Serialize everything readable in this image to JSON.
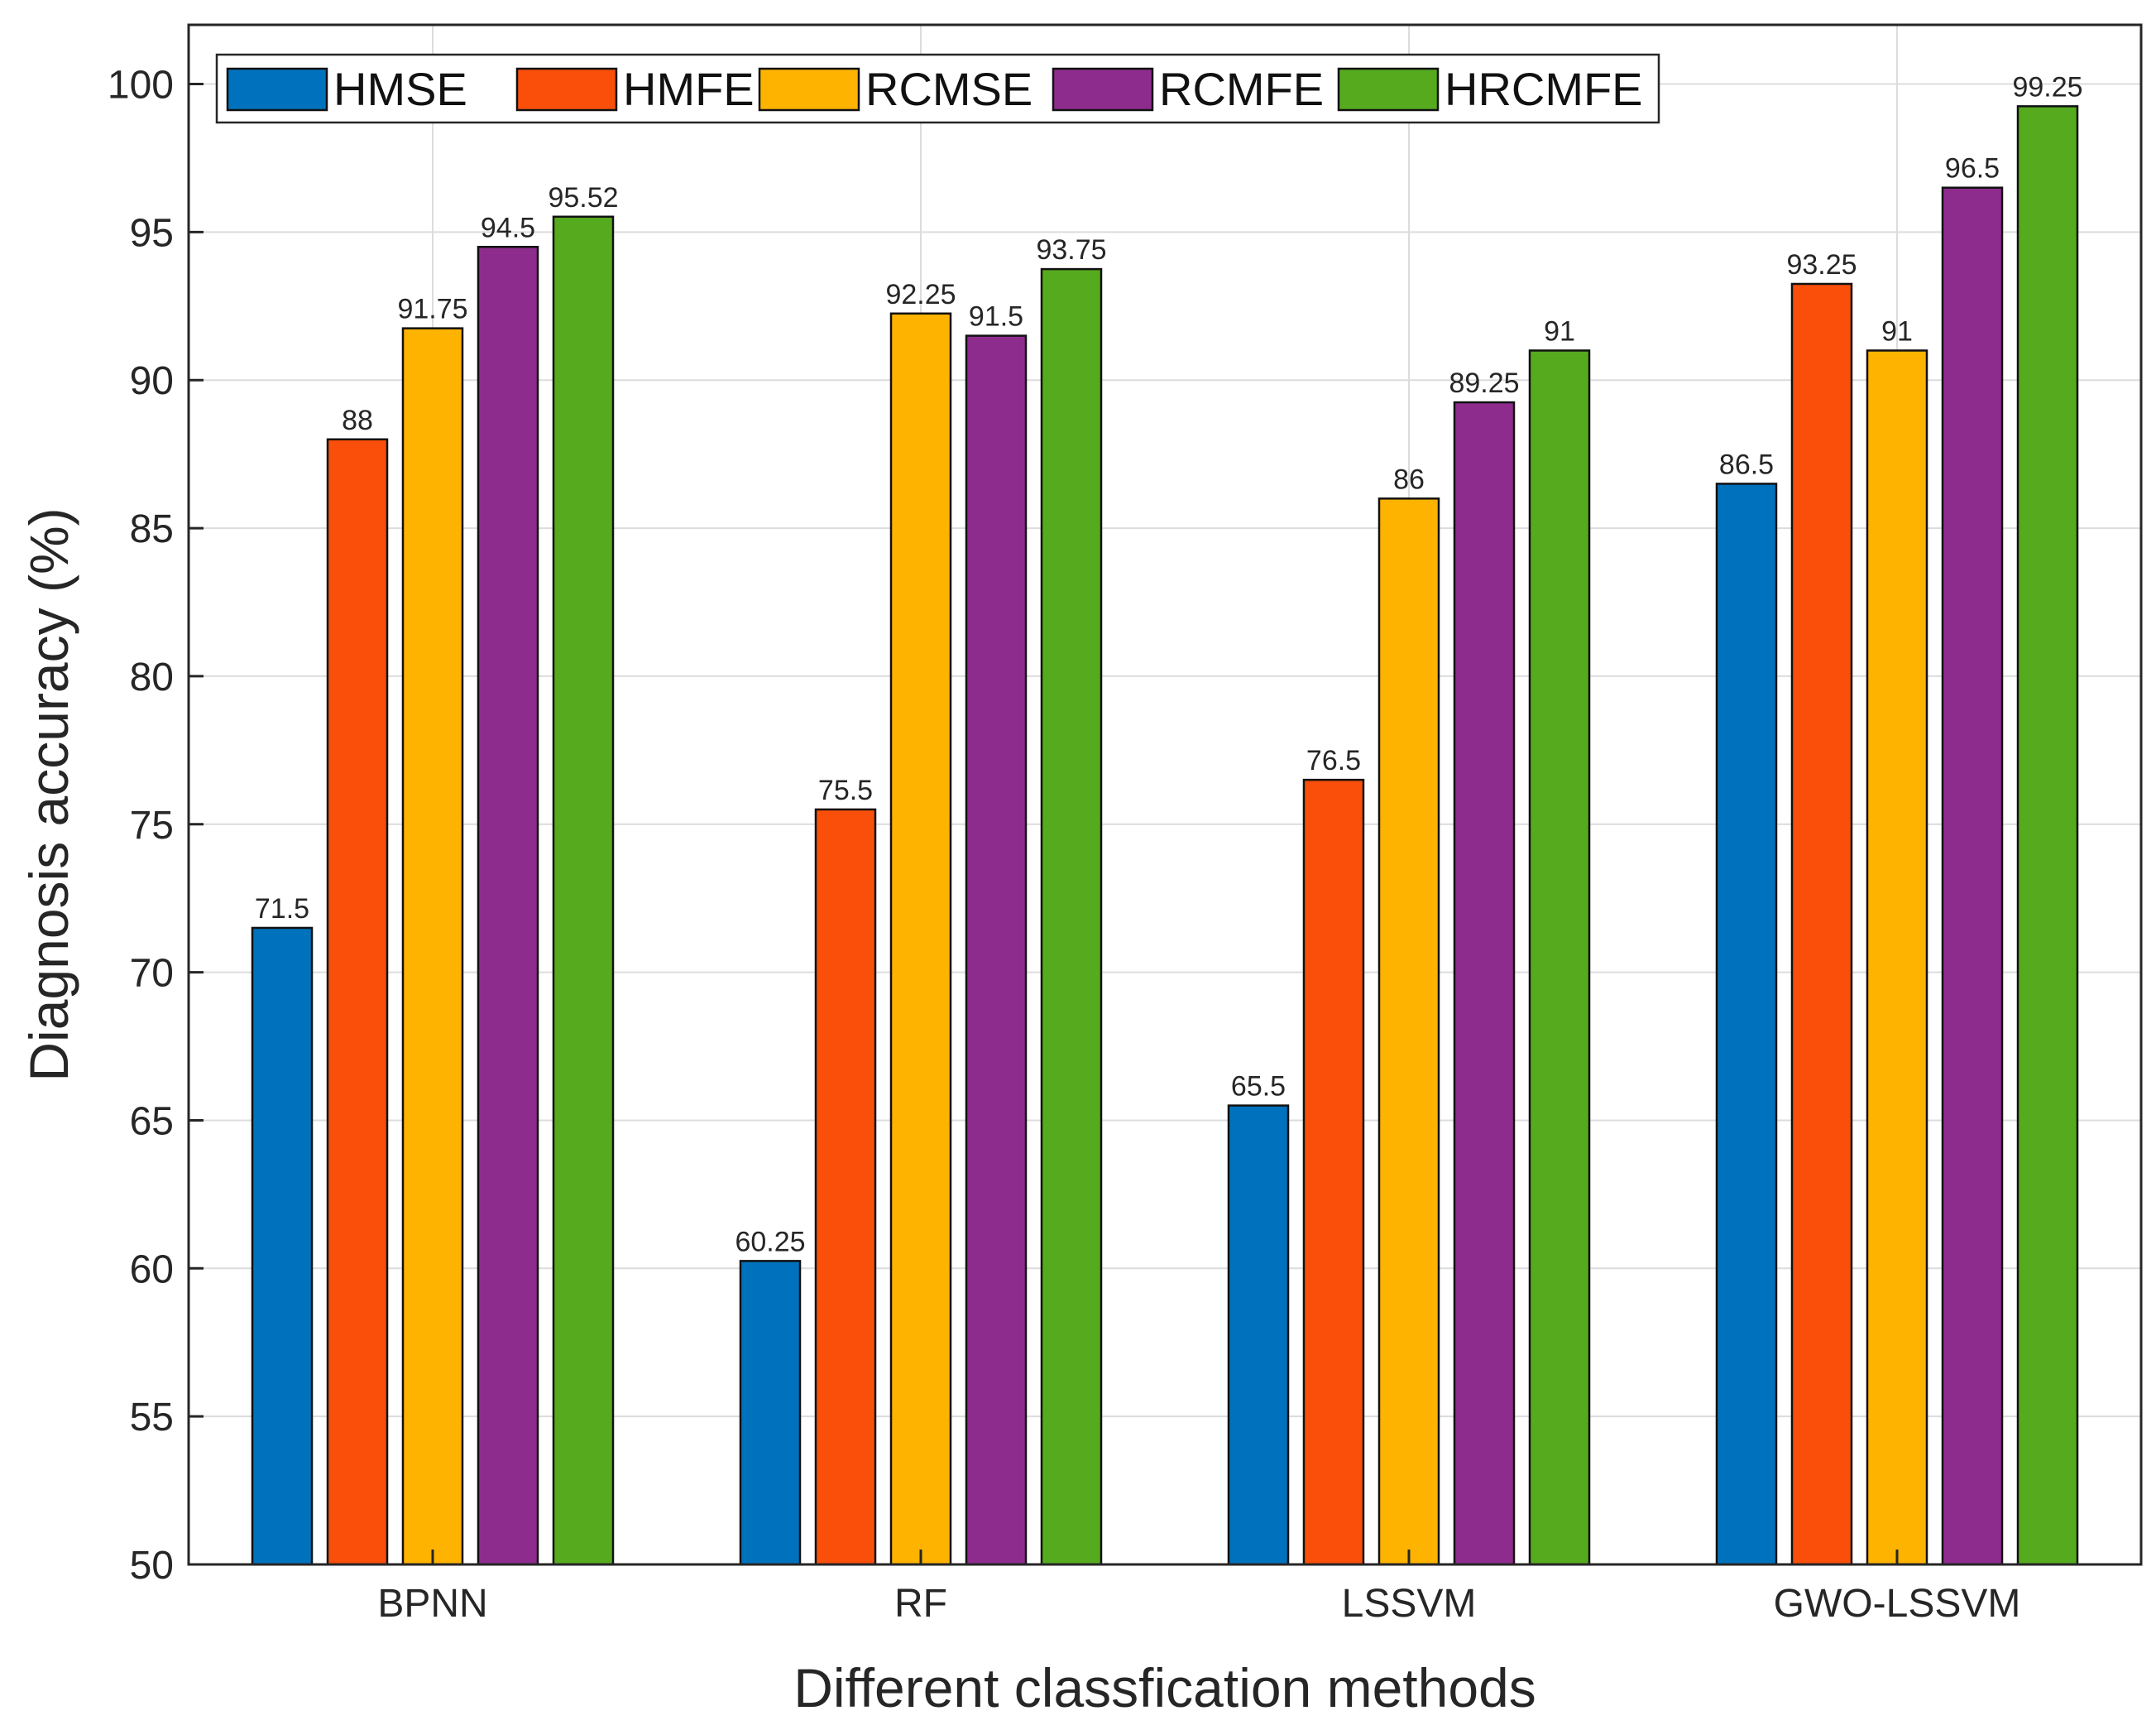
{
  "chart_data": {
    "type": "bar",
    "title": "",
    "xlabel": "Different classfication methods",
    "ylabel": "Diagnosis accuracy (%)",
    "ylim": [
      50,
      102
    ],
    "yticks": [
      50,
      55,
      60,
      65,
      70,
      75,
      80,
      85,
      90,
      95,
      100
    ],
    "grid": true,
    "legend_position": "top-left",
    "categories": [
      "BPNN",
      "RF",
      "LSSVM",
      "GWO-LSSVM"
    ],
    "series": [
      {
        "name": "HMSE",
        "color": "#0072BD",
        "values": [
          71.5,
          60.25,
          65.5,
          86.5
        ],
        "labels": [
          "71.5",
          "60.25",
          "65.5",
          "86.5"
        ]
      },
      {
        "name": "HMFE",
        "color": "#F94F0A",
        "values": [
          88,
          75.5,
          76.5,
          93.25
        ],
        "labels": [
          "88",
          "75.5",
          "76.5",
          "93.25"
        ]
      },
      {
        "name": "RCMSE",
        "color": "#FDB300",
        "values": [
          91.75,
          92.25,
          86,
          91
        ],
        "labels": [
          "91.75",
          "92.25",
          "86",
          "91"
        ]
      },
      {
        "name": "RCMFE",
        "color": "#8E2C8E",
        "values": [
          94.5,
          91.5,
          89.25,
          96.5
        ],
        "labels": [
          "94.5",
          "91.5",
          "89.25",
          "96.5"
        ]
      },
      {
        "name": "HRCMFE",
        "color": "#55AA1E",
        "values": [
          95.52,
          93.75,
          91,
          99.25
        ],
        "labels": [
          "95.52",
          "93.75",
          "91",
          "99.25"
        ]
      }
    ]
  }
}
